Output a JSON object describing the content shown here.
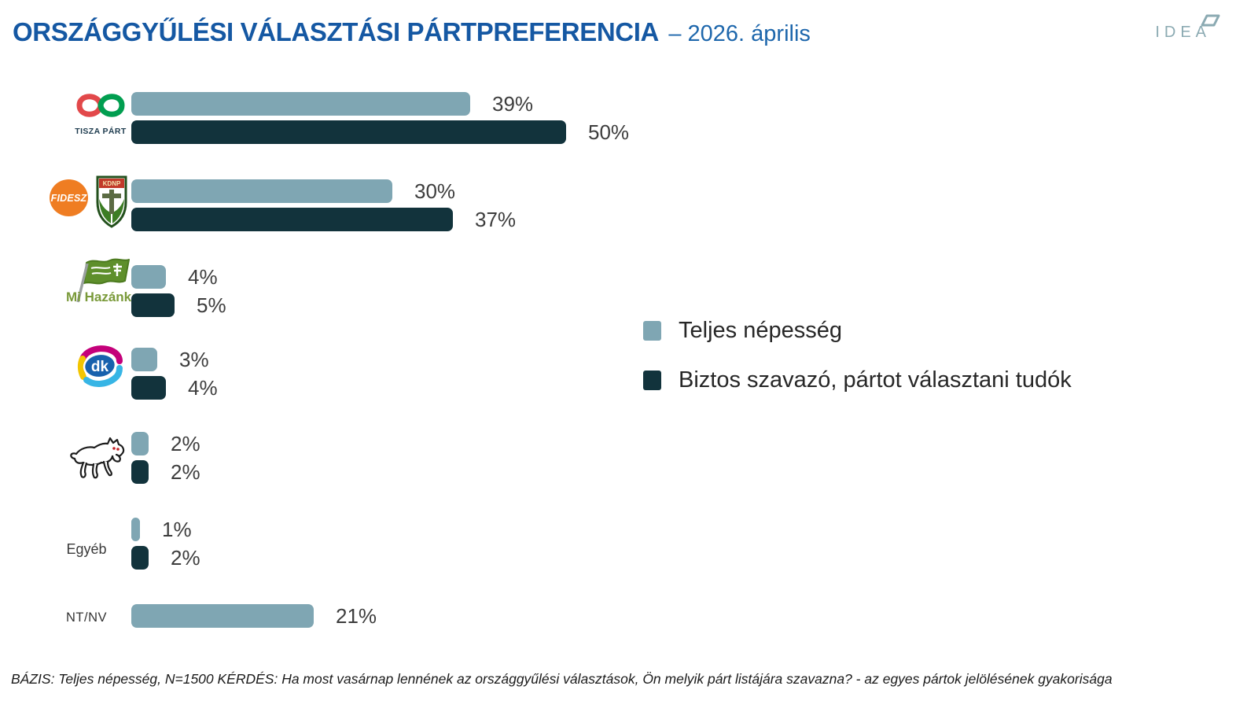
{
  "header": {
    "title": "ORSZÁGGYŰLÉSI VÁLASZTÁSI PÁRTPREFERENCIA",
    "subtitle": "– 2026. április",
    "brand": "IDEA"
  },
  "logos": {
    "tisza_caption": "TISZA PÁRT",
    "fidesz_text": "FIDESZ",
    "kdnp_text": "KDNP",
    "mi_hazank_text": "Mi Hazánk",
    "dk_text": "dk",
    "egyeb_label": "Egyéb",
    "ntnv_label": "NT/NV"
  },
  "legend": {
    "items": [
      {
        "label": "Teljes népesség",
        "color": "#7fa6b3"
      },
      {
        "label": "Biztos szavazó, pártot választani tudók",
        "color": "#12333c"
      }
    ]
  },
  "chart_data": {
    "type": "bar",
    "orientation": "horizontal",
    "title": "ORSZÁGGYŰLÉSI VÁLASZTÁSI PÁRTPREFERENCIA – 2026. április",
    "unit": "%",
    "xlim": [
      0,
      55
    ],
    "grid": false,
    "legend_position": "right-middle",
    "categories": [
      "TISZA PÁRT",
      "FIDESZ-KDNP",
      "Mi Hazánk",
      "DK",
      "MKKP",
      "Egyéb",
      "NT/NV"
    ],
    "series": [
      {
        "name": "Teljes népesség",
        "color": "#7fa6b3",
        "values": [
          39,
          30,
          4,
          3,
          2,
          1,
          21
        ]
      },
      {
        "name": "Biztos szavazó, pártot választani tudók",
        "color": "#12333c",
        "values": [
          50,
          37,
          5,
          4,
          2,
          2,
          null
        ]
      }
    ],
    "value_labels": [
      [
        "39%",
        "50%"
      ],
      [
        "30%",
        "37%"
      ],
      [
        "4%",
        "5%"
      ],
      [
        "3%",
        "4%"
      ],
      [
        "2%",
        "2%"
      ],
      [
        "1%",
        "2%"
      ],
      [
        "21%",
        null
      ]
    ]
  },
  "footer": {
    "text": "BÁZIS: Teljes népesség, N=1500  KÉRDÉS:  Ha most vasárnap lennének az országgyűlési választások, Ön melyik párt listájára szavazna? - az egyes pártok jelölésének gyakorisága"
  }
}
